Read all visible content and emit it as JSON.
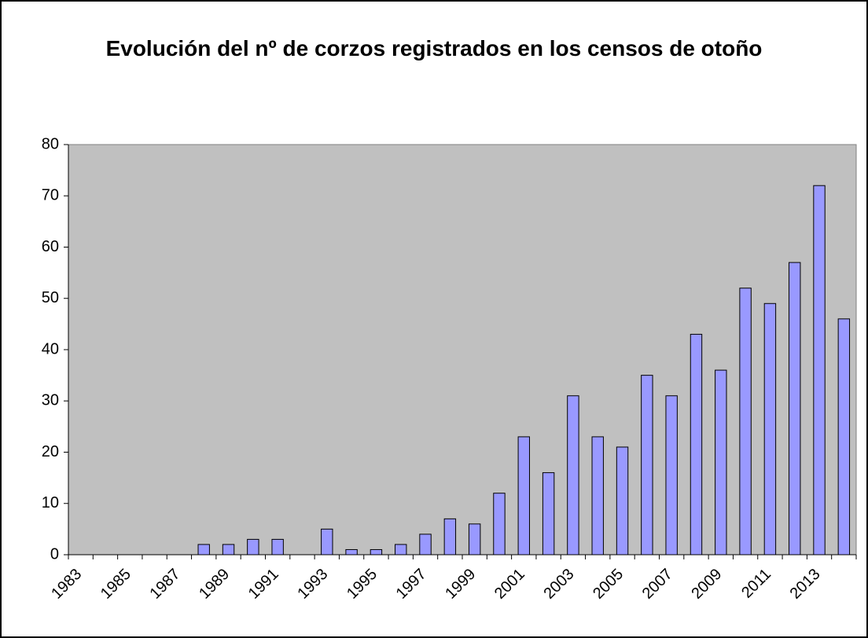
{
  "chart_data": {
    "type": "bar",
    "title": "Evolución del nº de corzos registrados en los censos de otoño",
    "categories": [
      "1983",
      null,
      "1985",
      null,
      "1987",
      null,
      "1989",
      null,
      "1991",
      null,
      "1993",
      null,
      "1995",
      null,
      "1997",
      null,
      "1999",
      null,
      "2001",
      null,
      "2003",
      null,
      "2005",
      null,
      "2007",
      null,
      "2009",
      null,
      "2011",
      null,
      "2013",
      null
    ],
    "values": [
      0,
      0,
      0,
      0,
      0,
      2,
      2,
      3,
      3,
      0,
      5,
      1,
      1,
      2,
      4,
      7,
      6,
      12,
      23,
      16,
      31,
      23,
      21,
      35,
      31,
      43,
      36,
      52,
      49,
      57,
      72,
      46
    ],
    "color": "#9999ff",
    "background": "#c0c0c0",
    "ylim": [
      0,
      80
    ],
    "yticks": [
      0,
      10,
      20,
      30,
      40,
      50,
      60,
      70,
      80
    ],
    "grid": false
  }
}
